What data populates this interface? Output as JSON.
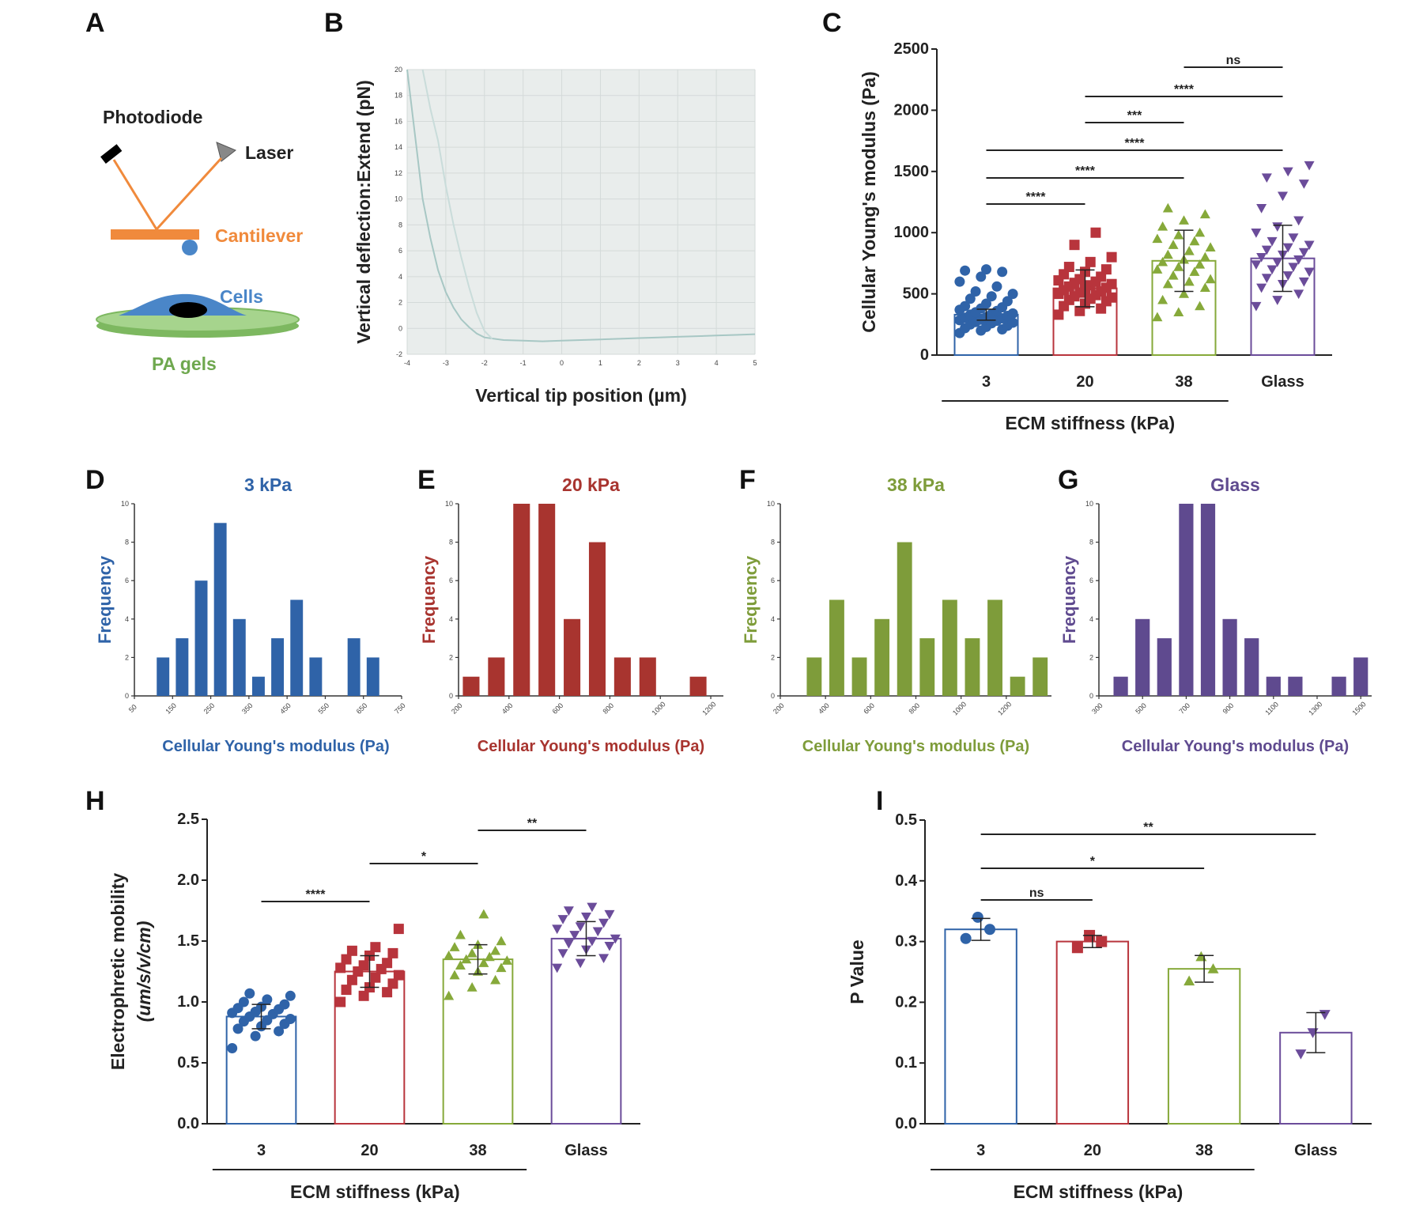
{
  "panels": {
    "A": {
      "label": "A",
      "photodiode": "Photodiode",
      "laser": "Laser",
      "cantilever": "Cantilever",
      "cells": "Cells",
      "gels": "PA gels",
      "colors": {
        "beam": "#f08a3c",
        "cantilever": "#f08a3c",
        "cell": "#4a86c8",
        "nucleus": "#000000",
        "gel": "#8cc870"
      }
    },
    "B": {
      "label": "B",
      "ylabel": "Vertical deflection:Extend (pN)",
      "xlabel": "Vertical tip position (µm)",
      "yticks": [
        "-2",
        "0",
        "2",
        "4",
        "6",
        "8",
        "10",
        "12",
        "14",
        "16",
        "18",
        "20"
      ],
      "xticks": [
        "-4",
        "-3",
        "-2",
        "-1",
        "0",
        "1",
        "2",
        "3",
        "4",
        "5"
      ]
    },
    "C": {
      "label": "C"
    },
    "D": {
      "label": "D"
    },
    "E": {
      "label": "E"
    },
    "F": {
      "label": "F"
    },
    "G": {
      "label": "G"
    },
    "H": {
      "label": "H"
    },
    "I": {
      "label": "I"
    }
  },
  "chart_data": [
    {
      "panel": "B",
      "type": "line",
      "xlabel": "Vertical tip position (µm)",
      "ylabel": "Vertical deflection:Extend (pN)",
      "xlim": [
        -4,
        5
      ],
      "ylim": [
        -2,
        20
      ],
      "grid": true,
      "series": [
        {
          "color": "#a7c7c4",
          "x": [
            -4.0,
            -3.8,
            -3.6,
            -3.4,
            -3.2,
            -3.0,
            -2.8,
            -2.6,
            -2.4,
            -2.2,
            -2.0,
            -1.5,
            -1.0,
            -0.5,
            0,
            0.5,
            1.0,
            1.5,
            2.0,
            2.5,
            3.0,
            3.5,
            4.0,
            4.5,
            5.0
          ],
          "y": [
            20,
            15,
            10,
            7,
            4.5,
            2.8,
            1.6,
            0.7,
            0.1,
            -0.4,
            -0.7,
            -0.9,
            -0.95,
            -1.0,
            -0.95,
            -0.9,
            -0.85,
            -0.8,
            -0.75,
            -0.7,
            -0.65,
            -0.6,
            -0.55,
            -0.5,
            -0.45
          ]
        },
        {
          "color": "#c9dcda",
          "x": [
            -3.6,
            -3.4,
            -3.2,
            -3.0,
            -2.8,
            -2.6,
            -2.4,
            -2.2,
            -2.0,
            -1.8
          ],
          "y": [
            20,
            17,
            14.5,
            11,
            8,
            5.5,
            3.2,
            1.2,
            -0.2,
            -0.8
          ]
        }
      ]
    },
    {
      "panel": "C",
      "type": "bar",
      "categories": [
        "3",
        "20",
        "38",
        "Glass"
      ],
      "values": [
        330,
        545,
        770,
        790
      ],
      "errors": [
        45,
        150,
        250,
        270
      ],
      "colors": [
        "#2f63a8",
        "#b8343c",
        "#86a93a",
        "#6b4c9a"
      ],
      "markers": [
        "circle",
        "square",
        "triangle-up",
        "triangle-down"
      ],
      "ylabel": "Cellular  Young's modulus (Pa)",
      "xlabel": "ECM stiffness (kPa)",
      "ylim": [
        0,
        2500
      ],
      "yticks": [
        "0",
        "500",
        "1000",
        "1500",
        "2000",
        "2500"
      ],
      "significance": [
        {
          "from": 0,
          "to": 1,
          "label": "****"
        },
        {
          "from": 0,
          "to": 2,
          "label": "****"
        },
        {
          "from": 0,
          "to": 3,
          "label": "****"
        },
        {
          "from": 1,
          "to": 2,
          "label": "***"
        },
        {
          "from": 1,
          "to": 3,
          "label": "****"
        },
        {
          "from": 2,
          "to": 3,
          "label": "ns"
        }
      ],
      "points": [
        [
          180,
          200,
          210,
          220,
          230,
          240,
          250,
          260,
          265,
          270,
          280,
          285,
          290,
          300,
          305,
          310,
          320,
          330,
          335,
          340,
          350,
          360,
          370,
          380,
          390,
          400,
          420,
          440,
          460,
          480,
          500,
          520,
          560,
          600,
          640,
          680,
          690,
          700
        ],
        [
          330,
          360,
          380,
          400,
          420,
          440,
          450,
          460,
          470,
          480,
          490,
          500,
          510,
          520,
          530,
          540,
          550,
          560,
          570,
          580,
          590,
          600,
          610,
          620,
          640,
          660,
          680,
          700,
          720,
          760,
          800,
          900,
          1000
        ],
        [
          310,
          350,
          400,
          450,
          500,
          550,
          580,
          600,
          620,
          650,
          680,
          700,
          720,
          740,
          760,
          780,
          800,
          820,
          850,
          880,
          900,
          930,
          950,
          980,
          1000,
          1050,
          1100,
          1150,
          1200
        ],
        [
          400,
          450,
          500,
          550,
          580,
          600,
          630,
          650,
          680,
          700,
          720,
          740,
          760,
          780,
          800,
          820,
          840,
          860,
          880,
          900,
          930,
          960,
          1000,
          1050,
          1100,
          1200,
          1300,
          1400,
          1450,
          1500,
          1550
        ]
      ]
    },
    {
      "panel": "D",
      "type": "bar",
      "title": "3 kPa",
      "color": "#2f63a8",
      "xlabel": "Cellular Young's modulus (Pa)",
      "ylabel": "Frequency",
      "ylim": [
        0,
        10
      ],
      "yticks": [
        "0",
        "2",
        "4",
        "6",
        "8",
        "10"
      ],
      "xticks": [
        "50",
        "150",
        "250",
        "350",
        "450",
        "550",
        "650",
        "750"
      ],
      "x": [
        125,
        175,
        225,
        275,
        325,
        375,
        425,
        475,
        525,
        625,
        675
      ],
      "values": [
        2,
        3,
        6,
        9,
        4,
        1,
        3,
        5,
        2,
        3,
        2
      ],
      "xlim": [
        50,
        750
      ]
    },
    {
      "panel": "E",
      "type": "bar",
      "title": "20 kPa",
      "color": "#a8342f",
      "xlabel": "Cellular Young's modulus (Pa)",
      "ylabel": "Frequency",
      "ylim": [
        0,
        10
      ],
      "yticks": [
        "0",
        "2",
        "4",
        "6",
        "8",
        "10"
      ],
      "xticks": [
        "200",
        "400",
        "600",
        "800",
        "1000",
        "1200"
      ],
      "x": [
        250,
        350,
        450,
        550,
        650,
        750,
        850,
        950,
        1150
      ],
      "values": [
        1,
        2,
        10,
        10,
        4,
        8,
        2,
        2,
        1
      ],
      "xlim": [
        200,
        1250
      ]
    },
    {
      "panel": "F",
      "type": "bar",
      "title": "38 kPa",
      "color": "#7e9c3a",
      "xlabel": "Cellular Young's modulus (Pa)",
      "ylabel": "Frequency",
      "ylim": [
        0,
        10
      ],
      "yticks": [
        "0",
        "2",
        "4",
        "6",
        "8",
        "10"
      ],
      "xticks": [
        "200",
        "400",
        "600",
        "800",
        "1000",
        "1200"
      ],
      "x": [
        350,
        450,
        550,
        650,
        750,
        850,
        950,
        1050,
        1150,
        1250,
        1350
      ],
      "values": [
        2,
        5,
        2,
        4,
        8,
        3,
        5,
        3,
        5,
        1,
        2
      ],
      "xlim": [
        200,
        1400
      ]
    },
    {
      "panel": "G",
      "type": "bar",
      "title": "Glass",
      "color": "#5f4a8f",
      "xlabel": "Cellular Young's modulus (Pa)",
      "ylabel": "Frequency",
      "ylim": [
        0,
        10
      ],
      "yticks": [
        "0",
        "2",
        "4",
        "6",
        "8",
        "10"
      ],
      "xticks": [
        "300",
        "500",
        "700",
        "900",
        "1100",
        "1300",
        "1500"
      ],
      "x": [
        400,
        500,
        600,
        700,
        800,
        900,
        1000,
        1100,
        1200,
        1400,
        1500
      ],
      "values": [
        1,
        4,
        3,
        10,
        10,
        4,
        3,
        1,
        1,
        1,
        2
      ],
      "xlim": [
        300,
        1550
      ]
    },
    {
      "panel": "H",
      "type": "bar",
      "categories": [
        "3",
        "20",
        "38",
        "Glass"
      ],
      "values": [
        0.88,
        1.25,
        1.35,
        1.52
      ],
      "errors": [
        0.1,
        0.13,
        0.12,
        0.14
      ],
      "colors": [
        "#2f63a8",
        "#b8343c",
        "#86a93a",
        "#6b4c9a"
      ],
      "markers": [
        "circle",
        "square",
        "triangle-up",
        "triangle-down"
      ],
      "ylabel": "Electrophretic mobility",
      "ylabel2": "(um/s/v/cm)",
      "xlabel": "ECM stiffness (kPa)",
      "ylim": [
        0,
        2.5
      ],
      "yticks": [
        "0.0",
        "0.5",
        "1.0",
        "1.5",
        "2.0",
        "2.5"
      ],
      "significance": [
        {
          "from": 0,
          "to": 1,
          "label": "****"
        },
        {
          "from": 1,
          "to": 2,
          "label": "*"
        },
        {
          "from": 2,
          "to": 3,
          "label": "**"
        }
      ],
      "points": [
        [
          0.62,
          0.72,
          0.76,
          0.78,
          0.8,
          0.82,
          0.84,
          0.85,
          0.86,
          0.88,
          0.9,
          0.91,
          0.92,
          0.94,
          0.95,
          0.96,
          0.98,
          1.0,
          1.02,
          1.05,
          1.07
        ],
        [
          1.0,
          1.05,
          1.08,
          1.1,
          1.12,
          1.15,
          1.18,
          1.2,
          1.22,
          1.25,
          1.27,
          1.28,
          1.3,
          1.32,
          1.35,
          1.38,
          1.4,
          1.42,
          1.45,
          1.6
        ],
        [
          1.05,
          1.12,
          1.18,
          1.22,
          1.25,
          1.28,
          1.3,
          1.32,
          1.34,
          1.35,
          1.37,
          1.38,
          1.4,
          1.42,
          1.45,
          1.47,
          1.5,
          1.55,
          1.72
        ],
        [
          1.28,
          1.32,
          1.36,
          1.4,
          1.43,
          1.46,
          1.48,
          1.5,
          1.52,
          1.55,
          1.58,
          1.6,
          1.62,
          1.65,
          1.68,
          1.7,
          1.72,
          1.75,
          1.78
        ]
      ]
    },
    {
      "panel": "I",
      "type": "bar",
      "categories": [
        "3",
        "20",
        "38",
        "Glass"
      ],
      "values": [
        0.32,
        0.3,
        0.255,
        0.15
      ],
      "errors": [
        0.018,
        0.01,
        0.022,
        0.033
      ],
      "colors": [
        "#2f63a8",
        "#b8343c",
        "#86a93a",
        "#6b4c9a"
      ],
      "markers": [
        "circle",
        "square",
        "triangle-up",
        "triangle-down"
      ],
      "ylabel": "P Value",
      "xlabel": "ECM stiffness (kPa)",
      "ylim": [
        0,
        0.5
      ],
      "yticks": [
        "0.0",
        "0.1",
        "0.2",
        "0.3",
        "0.4",
        "0.5"
      ],
      "significance": [
        {
          "from": 0,
          "to": 1,
          "label": "ns"
        },
        {
          "from": 0,
          "to": 2,
          "label": "*"
        },
        {
          "from": 0,
          "to": 3,
          "label": "**"
        }
      ],
      "points": [
        [
          0.305,
          0.34,
          0.32
        ],
        [
          0.29,
          0.31,
          0.3
        ],
        [
          0.235,
          0.275,
          0.255
        ],
        [
          0.115,
          0.15,
          0.18
        ]
      ]
    }
  ]
}
